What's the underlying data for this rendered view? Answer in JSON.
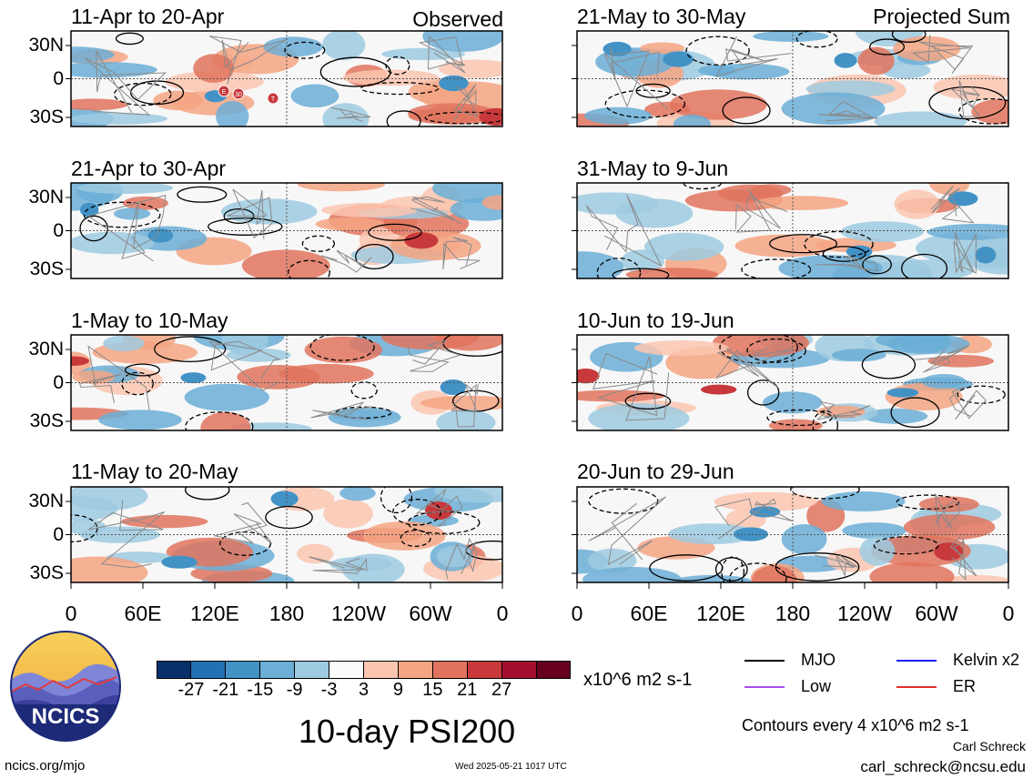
{
  "figure": {
    "title": "10-day PSI200",
    "units": "x10^6 m2 s-1",
    "contour_note": "Contours every 4 x10^6 m2 s-1",
    "author": "Carl Schreck",
    "email": "carl_schreck@ncsu.edu",
    "site": "ncics.org/mjo",
    "timestamp": "Wed 2025-05-21 1017 UTC",
    "logo_text": "NCICS"
  },
  "columns": {
    "left_label": "Observed",
    "right_label": "Projected Sum"
  },
  "panels_left": [
    {
      "title": "11-Apr to 20-Apr"
    },
    {
      "title": "21-Apr to 30-Apr"
    },
    {
      "title": "1-May to 10-May"
    },
    {
      "title": "11-May to 20-May"
    }
  ],
  "panels_right": [
    {
      "title": "21-May to 30-May"
    },
    {
      "title": "31-May to 9-Jun"
    },
    {
      "title": "10-Jun to 19-Jun"
    },
    {
      "title": "20-Jun to 29-Jun"
    }
  ],
  "lat_labels": [
    "30N",
    "0",
    "30S"
  ],
  "lon_labels": [
    "0",
    "60E",
    "120E",
    "180",
    "120W",
    "60W",
    "0"
  ],
  "colorbar": {
    "labels": [
      "-27",
      "-21",
      "-15",
      "-9",
      "-3",
      "3",
      "9",
      "15",
      "21",
      "27"
    ],
    "colors": [
      "#08306b",
      "#2171b5",
      "#4292c6",
      "#6baed6",
      "#9ecae1",
      "#fbfbfb",
      "#fcc5b0",
      "#f4a582",
      "#e0745e",
      "#c8393b",
      "#a50f2e",
      "#67001f"
    ]
  },
  "legend": [
    {
      "label": "MJO",
      "color": "#000000"
    },
    {
      "label": "Kelvin x2",
      "color": "#1f1fff"
    },
    {
      "label": "Low",
      "color": "#a64ff0"
    },
    {
      "label": "ER",
      "color": "#e0302a"
    }
  ],
  "storm_markers": [
    "E",
    "30",
    "T"
  ]
}
